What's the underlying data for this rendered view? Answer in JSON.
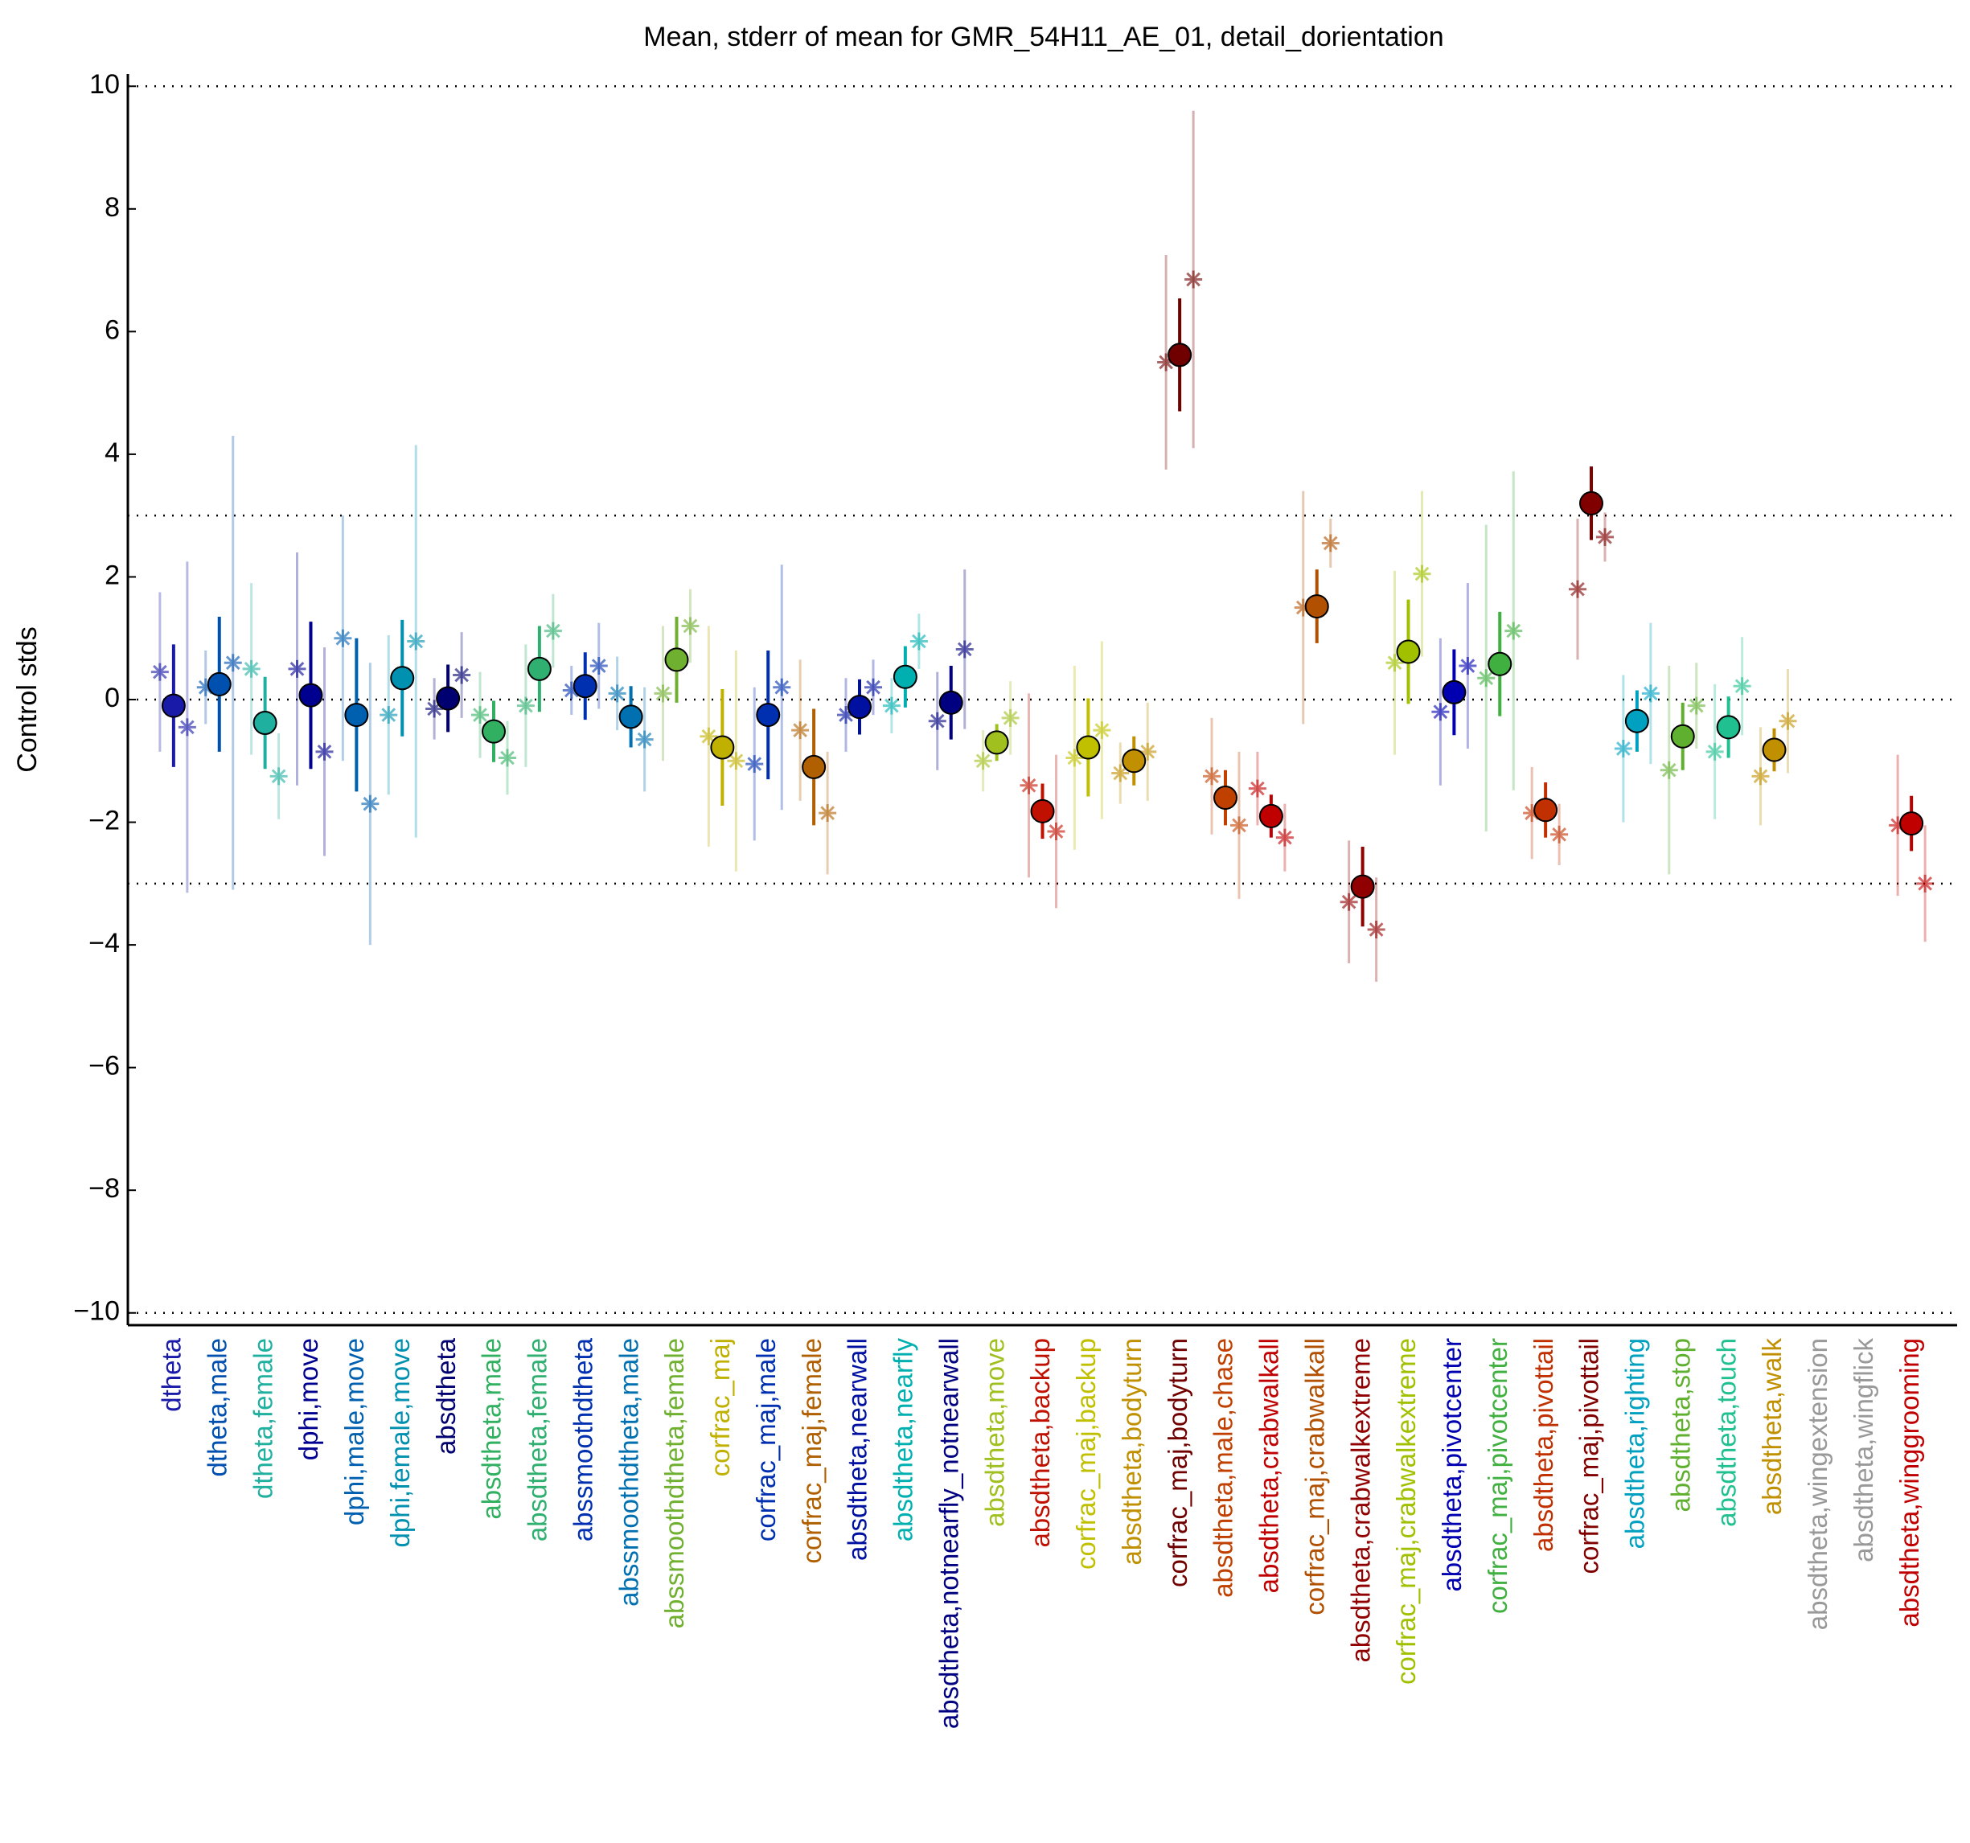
{
  "chart_data": {
    "type": "errorbar",
    "title": "Mean, stderr of mean for GMR_54H11_AE_01, detail_dorientation",
    "y_label": "Control stds",
    "categories": [
      "dtheta",
      "dtheta,male",
      "dtheta,female",
      "dphi,move",
      "dphi,male,move",
      "dphi,female,move",
      "absdtheta",
      "absdtheta,male",
      "absdtheta,female",
      "abssmoothdtheta",
      "abssmoothdtheta,male",
      "abssmoothdtheta,female",
      "corfrac_maj",
      "corfrac_maj,male",
      "corfrac_maj,female",
      "absdtheta,nearwall",
      "absdtheta,nearfly",
      "absdtheta,notnearfly_notnearwall",
      "absdtheta,move",
      "absdtheta,backup",
      "corfrac_maj,backup",
      "absdtheta,bodyturn",
      "corfrac_maj,bodyturn",
      "absdtheta,male,chase",
      "absdtheta,crabwalkall",
      "corfrac_maj,crabwalkall",
      "absdtheta,crabwalkextreme",
      "corfrac_maj,crabwalkextreme",
      "absdtheta,pivotcenter",
      "corfrac_maj,pivotcenter",
      "absdtheta,pivottail",
      "corfrac_maj,pivottail",
      "absdtheta,righting",
      "absdtheta,stop",
      "absdtheta,touch",
      "absdtheta,walk",
      "absdtheta,wingextension",
      "absdtheta,wingflick",
      "absdtheta,winggrooming"
    ],
    "colors": [
      "#1a1aa8",
      "#0050b0",
      "#20b0a0",
      "#000090",
      "#0060b0",
      "#0090b0",
      "#000070",
      "#30b060",
      "#30b070",
      "#0030b0",
      "#0070b0",
      "#70b030",
      "#c0b000",
      "#0030b0",
      "#b06000",
      "#0010a0",
      "#00b0b0",
      "#000080",
      "#a0c020",
      "#c01000",
      "#c0c000",
      "#c09000",
      "#700000",
      "#c04000",
      "#c00000",
      "#b05000",
      "#900000",
      "#a0c000",
      "#0000b0",
      "#40b040",
      "#c03000",
      "#800000",
      "#00a0c0",
      "#60b030",
      "#20c090",
      "#c09000",
      "#999999",
      "#999999",
      "#c00000"
    ],
    "values": [
      -0.1,
      0.25,
      -0.38,
      0.07,
      -0.25,
      0.35,
      0.02,
      -0.52,
      0.5,
      0.22,
      -0.28,
      0.65,
      -0.78,
      -0.25,
      -1.1,
      -0.12,
      0.37,
      -0.05,
      -0.7,
      -1.82,
      -0.78,
      -1.0,
      5.62,
      -1.6,
      -1.9,
      1.52,
      -3.05,
      0.78,
      0.12,
      0.58,
      -1.8,
      3.2,
      -0.35,
      -0.6,
      -0.45,
      -0.82,
      null,
      null,
      -2.02
    ],
    "errors": [
      1.0,
      1.1,
      0.75,
      1.2,
      1.25,
      0.95,
      0.55,
      0.5,
      0.7,
      0.55,
      0.5,
      0.7,
      0.95,
      1.05,
      0.95,
      0.45,
      0.5,
      0.6,
      0.3,
      0.45,
      0.8,
      0.4,
      0.92,
      0.45,
      0.35,
      0.6,
      0.65,
      0.85,
      0.7,
      0.85,
      0.45,
      0.6,
      0.5,
      0.55,
      0.5,
      0.35,
      null,
      null,
      0.45
    ],
    "left_values": [
      0.45,
      0.2,
      0.5,
      0.5,
      1.0,
      -0.25,
      -0.15,
      -0.25,
      -0.1,
      0.15,
      0.1,
      0.1,
      -0.6,
      -1.05,
      -0.5,
      -0.25,
      -0.1,
      -0.35,
      -1.0,
      -1.4,
      -0.95,
      -1.2,
      5.5,
      -1.25,
      -1.45,
      1.5,
      -3.3,
      0.6,
      -0.2,
      0.35,
      -1.85,
      1.8,
      -0.8,
      -1.15,
      -0.85,
      -1.25,
      null,
      null,
      -2.05
    ],
    "left_errors": [
      1.3,
      0.6,
      1.4,
      1.9,
      2.0,
      1.3,
      0.5,
      0.7,
      1.0,
      0.4,
      0.6,
      1.1,
      1.8,
      1.25,
      1.15,
      0.6,
      0.45,
      0.8,
      0.5,
      1.5,
      1.5,
      0.5,
      1.75,
      0.95,
      0.6,
      1.9,
      1.0,
      1.5,
      1.2,
      2.5,
      0.75,
      1.15,
      1.2,
      1.7,
      1.1,
      0.8,
      null,
      null,
      1.15
    ],
    "right_values": [
      -0.45,
      0.6,
      -1.25,
      -0.85,
      -1.7,
      0.95,
      0.4,
      -0.95,
      1.12,
      0.55,
      -0.65,
      1.2,
      -1.0,
      0.2,
      -1.85,
      0.2,
      0.95,
      0.82,
      -0.3,
      -2.15,
      -0.5,
      -0.85,
      6.85,
      -2.05,
      -2.25,
      2.55,
      -3.75,
      2.05,
      0.55,
      1.12,
      -2.2,
      2.65,
      0.1,
      -0.1,
      0.22,
      -0.35,
      null,
      null,
      -3.0
    ],
    "right_errors": [
      2.7,
      3.7,
      0.7,
      1.7,
      2.3,
      3.2,
      0.7,
      0.6,
      0.6,
      0.7,
      0.85,
      0.6,
      1.8,
      2.0,
      1.0,
      0.45,
      0.45,
      1.3,
      0.6,
      1.25,
      1.45,
      0.8,
      2.75,
      1.2,
      0.55,
      0.4,
      0.85,
      1.35,
      1.35,
      2.6,
      0.5,
      0.4,
      1.15,
      0.7,
      0.8,
      0.85,
      null,
      null,
      0.95
    ],
    "xlim": [
      0,
      40
    ],
    "ylim": [
      -10.2,
      10.2
    ],
    "yticks": [
      {
        "value": -10,
        "label": "−10"
      },
      {
        "value": -8,
        "label": "−8"
      },
      {
        "value": -6,
        "label": "−6"
      },
      {
        "value": -4,
        "label": "−4"
      },
      {
        "value": -2,
        "label": "−2"
      },
      0,
      2,
      4,
      6,
      8,
      10
    ],
    "hlines": [
      10,
      3,
      0,
      -3,
      -10
    ]
  }
}
